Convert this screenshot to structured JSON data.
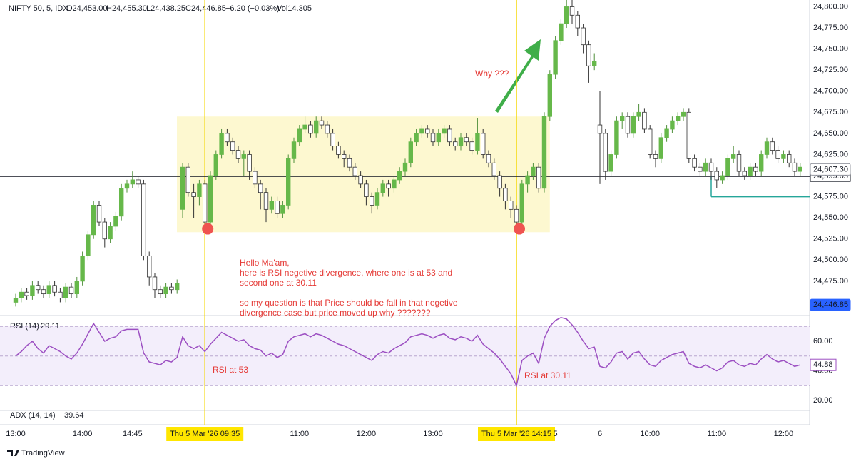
{
  "header": {
    "symbol": "NIFTY 50, 5, IDX",
    "open": "O24,453.00",
    "high": "H24,455.30",
    "low": "L24,438.25",
    "close": "C24,446.85",
    "change": "−6.20 (−0.03%)",
    "volume": "Vol14.305"
  },
  "brand": "TradingView",
  "chart_data": {
    "type": "candlestick",
    "categories": [
      "13:00",
      null,
      null,
      null,
      null,
      null,
      null,
      null,
      null,
      null,
      null,
      null,
      "14:00",
      null,
      null,
      null,
      null,
      null,
      null,
      null,
      null,
      "14:45",
      null,
      null,
      null,
      null,
      null,
      null,
      null,
      null,
      null,
      null,
      null,
      null,
      "Thu 5 Mar '26  09:35",
      null,
      null,
      null,
      null,
      null,
      null,
      null,
      null,
      null,
      null,
      null,
      null,
      null,
      null,
      null,
      null,
      "11:00",
      null,
      null,
      null,
      null,
      null,
      null,
      null,
      null,
      null,
      null,
      null,
      "12:00",
      null,
      null,
      null,
      null,
      null,
      null,
      null,
      null,
      null,
      null,
      null,
      "13:00",
      null,
      null,
      null,
      null,
      null,
      null,
      null,
      null,
      null,
      null,
      null,
      null,
      null,
      null,
      "Thu 5 Mar '26  14:15",
      null,
      null,
      null,
      null,
      null,
      null,
      "5",
      null,
      null,
      null,
      null,
      null,
      null,
      null,
      "6",
      null,
      null,
      null,
      null,
      null,
      null,
      null,
      null,
      "10:00",
      null,
      null,
      null,
      null,
      null,
      null,
      null,
      null,
      null,
      null,
      null,
      "11:00",
      null,
      null,
      null,
      null,
      null,
      null,
      null,
      null,
      null,
      null,
      null,
      "12:00",
      null,
      null,
      null
    ],
    "open": [
      24450,
      24455,
      24462,
      24458,
      24470,
      24465,
      24460,
      24470,
      24462,
      24455,
      24468,
      24460,
      24475,
      24505,
      24530,
      24565,
      24545,
      24525,
      24540,
      24552,
      24585,
      24590,
      24595,
      24590,
      24505,
      24480,
      24465,
      24460,
      24468,
      24465,
      24560,
      24610,
      24580,
      24575,
      24590,
      24545,
      24600,
      24625,
      24650,
      24640,
      24630,
      24620,
      24625,
      24605,
      24590,
      24580,
      24560,
      24570,
      24555,
      24565,
      24620,
      24640,
      24655,
      24660,
      24650,
      24665,
      24660,
      24650,
      24635,
      24625,
      24620,
      24610,
      24600,
      24590,
      24575,
      24565,
      24580,
      24590,
      24585,
      24595,
      24605,
      24615,
      24640,
      24650,
      24655,
      24650,
      24640,
      24650,
      24655,
      24640,
      24635,
      24645,
      24640,
      24630,
      24650,
      24625,
      24615,
      24600,
      24585,
      24570,
      24560,
      24545,
      24590,
      24600,
      24610,
      24585,
      24670,
      24720,
      24760,
      24780,
      24800,
      24790,
      24775,
      24755,
      24730,
      24660,
      24650,
      24605,
      24625,
      24665,
      24670,
      24650,
      24670,
      24675,
      24655,
      24625,
      24620,
      24645,
      24655,
      24665,
      24670,
      24675,
      24620,
      24610,
      24605,
      24615,
      24605,
      24595,
      24600,
      24620,
      24625,
      24605,
      24600,
      24610,
      24605,
      24625,
      24640,
      24630,
      24620,
      24625,
      24615,
      24605
    ],
    "high": [
      24460,
      24467,
      24467,
      24475,
      24475,
      24470,
      24475,
      24475,
      24467,
      24473,
      24473,
      24480,
      24510,
      24535,
      24570,
      24570,
      24550,
      24545,
      24557,
      24590,
      24595,
      24605,
      24600,
      24595,
      24510,
      24485,
      24470,
      24473,
      24473,
      24477,
      24615,
      24615,
      24590,
      24595,
      24595,
      24605,
      24630,
      24655,
      24655,
      24645,
      24635,
      24630,
      24630,
      24610,
      24595,
      24585,
      24575,
      24575,
      24570,
      24625,
      24645,
      24660,
      24670,
      24665,
      24670,
      24670,
      24665,
      24655,
      24640,
      24630,
      24625,
      24615,
      24605,
      24595,
      24580,
      24585,
      24595,
      24595,
      24600,
      24610,
      24620,
      24645,
      24655,
      24660,
      24660,
      24655,
      24655,
      24660,
      24660,
      24645,
      24650,
      24650,
      24645,
      24668,
      24655,
      24630,
      24620,
      24605,
      24590,
      24575,
      24565,
      24595,
      24605,
      24615,
      24615,
      24675,
      24725,
      24765,
      24785,
      24808,
      24808,
      24795,
      24780,
      24760,
      24745,
      24700,
      24655,
      24630,
      24670,
      24675,
      24675,
      24675,
      24685,
      24680,
      24660,
      24630,
      24650,
      24660,
      24670,
      24675,
      24680,
      24680,
      24625,
      24615,
      24620,
      24620,
      24610,
      24605,
      24625,
      24635,
      24630,
      24610,
      24615,
      24615,
      24630,
      24645,
      24645,
      24635,
      24630,
      24630,
      24620,
      24615
    ],
    "low": [
      24445,
      24450,
      24453,
      24453,
      24460,
      24455,
      24455,
      24457,
      24450,
      24450,
      24455,
      24455,
      24470,
      24500,
      24525,
      24540,
      24515,
      24520,
      24535,
      24547,
      24580,
      24585,
      24585,
      24500,
      24470,
      24455,
      24455,
      24455,
      24460,
      24460,
      24550,
      24575,
      24550,
      24565,
      24537,
      24540,
      24595,
      24620,
      24635,
      24625,
      24615,
      24600,
      24595,
      24585,
      24560,
      24545,
      24555,
      24550,
      24550,
      24560,
      24615,
      24635,
      24650,
      24645,
      24645,
      24655,
      24645,
      24630,
      24620,
      24610,
      24605,
      24595,
      24585,
      24565,
      24555,
      24560,
      24575,
      24575,
      24580,
      24590,
      24600,
      24610,
      24635,
      24645,
      24645,
      24635,
      24635,
      24645,
      24635,
      24630,
      24630,
      24635,
      24625,
      24625,
      24620,
      24610,
      24595,
      24575,
      24560,
      24550,
      24537,
      24540,
      24580,
      24595,
      24580,
      24580,
      24665,
      24715,
      24755,
      24775,
      24780,
      24765,
      24745,
      24710,
      24725,
      24590,
      24595,
      24600,
      24620,
      24655,
      24645,
      24645,
      24665,
      24650,
      24620,
      24610,
      24615,
      24640,
      24650,
      24660,
      24665,
      24615,
      24605,
      24600,
      24600,
      24595,
      24585,
      24590,
      24595,
      24615,
      24600,
      24595,
      24595,
      24600,
      24600,
      24620,
      24625,
      24615,
      24615,
      24610,
      24600,
      24600
    ],
    "close": [
      24455,
      24462,
      24458,
      24470,
      24465,
      24460,
      24470,
      24462,
      24455,
      24468,
      24460,
      24475,
      24505,
      24530,
      24565,
      24545,
      24525,
      24540,
      24552,
      24585,
      24590,
      24595,
      24590,
      24505,
      24480,
      24465,
      24460,
      24468,
      24465,
      24472,
      24610,
      24580,
      24575,
      24590,
      24545,
      24600,
      24625,
      24650,
      24640,
      24630,
      24620,
      24625,
      24605,
      24590,
      24580,
      24560,
      24570,
      24555,
      24565,
      24620,
      24640,
      24655,
      24660,
      24650,
      24665,
      24660,
      24650,
      24635,
      24625,
      24620,
      24610,
      24600,
      24590,
      24575,
      24565,
      24580,
      24590,
      24585,
      24595,
      24605,
      24615,
      24640,
      24650,
      24655,
      24650,
      24640,
      24650,
      24655,
      24640,
      24635,
      24645,
      24640,
      24630,
      24650,
      24625,
      24615,
      24600,
      24585,
      24570,
      24560,
      24545,
      24590,
      24600,
      24610,
      24585,
      24670,
      24720,
      24760,
      24780,
      24800,
      24790,
      24775,
      24755,
      24730,
      24735,
      24650,
      24605,
      24625,
      24665,
      24670,
      24650,
      24670,
      24675,
      24655,
      24625,
      24620,
      24645,
      24655,
      24665,
      24670,
      24675,
      24620,
      24610,
      24605,
      24615,
      24605,
      24595,
      24600,
      24620,
      24625,
      24605,
      24600,
      24610,
      24605,
      24625,
      24640,
      24630,
      24620,
      24625,
      24615,
      24605,
      24610
    ],
    "up_color": "#66b84a",
    "down_color": "#ffffff",
    "ylim": [
      24436,
      24808
    ],
    "yticks": [
      {
        "value": 24800,
        "label": "24,800.00"
      },
      {
        "value": 24775,
        "label": "24,775.00"
      },
      {
        "value": 24750,
        "label": "24,750.00"
      },
      {
        "value": 24725,
        "label": "24,725.00"
      },
      {
        "value": 24700,
        "label": "24,700.00"
      },
      {
        "value": 24675,
        "label": "24,675.00"
      },
      {
        "value": 24650,
        "label": "24,650.00"
      },
      {
        "value": 24625,
        "label": "24,625.00"
      },
      {
        "value": 24575,
        "label": "24,575.00"
      },
      {
        "value": 24550,
        "label": "24,550.00"
      },
      {
        "value": 24525,
        "label": "24,525.00"
      },
      {
        "value": 24500,
        "label": "24,500.00"
      },
      {
        "value": 24475,
        "label": "24,475.00"
      }
    ],
    "grid": false,
    "highlights": [
      34,
      90
    ],
    "zone": {
      "from": 30,
      "to": 96,
      "top": 24670,
      "bottom": 24533,
      "color": "#fdf8d0"
    },
    "price_lines": [
      {
        "value": 24599.05,
        "label": "24,599.05",
        "color": "#131722"
      }
    ],
    "level": {
      "value": 24575,
      "from": 125,
      "color": "#26a69a"
    },
    "badges": [
      {
        "value": 24607.3,
        "label": "24,607.30"
      },
      {
        "value": 24446.85,
        "label": "24,446.85"
      }
    ],
    "annotations": {
      "why": "Why ???",
      "rsi_first": "RSI at 53",
      "rsi_second": "RSI at 30.11",
      "note": [
        [
          "Hello Ma'am,",
          "here is RSI negetive divergence, where one is at 53 and",
          "second one at 30.11"
        ],
        [
          "so my question is that Price should be fall in that negetive",
          "divergence case but price moved up why ???????"
        ]
      ]
    },
    "rsi": {
      "name": "RSI (14)",
      "value_label": "29.11",
      "badge": "44.88",
      "color": "#9c4fc2",
      "values": [
        50,
        53,
        57,
        60,
        55,
        52,
        57,
        55,
        53,
        50,
        48,
        52,
        58,
        65,
        72,
        66,
        60,
        62,
        63,
        67,
        68,
        68,
        68,
        52,
        46,
        45,
        44,
        47,
        46,
        49,
        63,
        57,
        55,
        57,
        53,
        58,
        62,
        66,
        64,
        62,
        60,
        61,
        57,
        55,
        54,
        50,
        52,
        49,
        51,
        60,
        63,
        64,
        65,
        63,
        65,
        64,
        62,
        60,
        58,
        57,
        55,
        53,
        51,
        49,
        47,
        51,
        53,
        52,
        55,
        57,
        59,
        63,
        64,
        65,
        64,
        62,
        64,
        65,
        62,
        61,
        63,
        62,
        60,
        64,
        58,
        55,
        52,
        48,
        43,
        38,
        30,
        47,
        50,
        52,
        45,
        62,
        70,
        74,
        76,
        75,
        71,
        66,
        60,
        55,
        56,
        43,
        42,
        46,
        52,
        53,
        48,
        52,
        53,
        48,
        44,
        43,
        47,
        49,
        51,
        52,
        53,
        45,
        43,
        42,
        44,
        42,
        40,
        42,
        46,
        47,
        44,
        43,
        45,
        44,
        48,
        51,
        48,
        46,
        47,
        45,
        43,
        44
      ],
      "ylim": [
        12.8,
        75.4
      ],
      "yticks": [
        {
          "value": 60,
          "label": "60.00"
        },
        {
          "value": 40,
          "label": "40.00"
        },
        {
          "value": 20,
          "label": "20.00"
        }
      ],
      "bands": [
        70,
        50,
        30
      ]
    },
    "adx": {
      "name": "ADX (14, 14)",
      "value_label": "39.64"
    }
  }
}
